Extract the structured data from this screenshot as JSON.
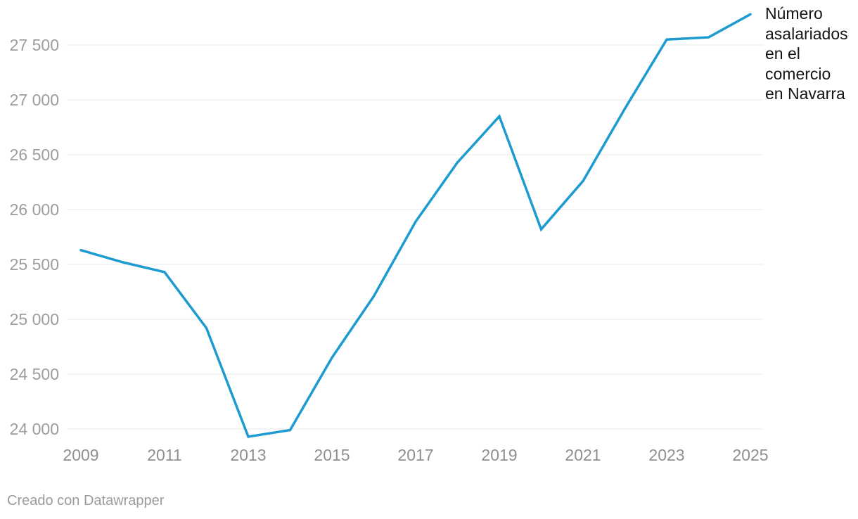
{
  "chart_data": {
    "type": "line",
    "title": "Número asalariados en el comercio en Navarra",
    "annotation_lines": [
      "Número",
      "asalariados",
      "en el",
      "comercio",
      "en Navarra"
    ],
    "x": [
      2009,
      2010,
      2011,
      2012,
      2013,
      2014,
      2015,
      2016,
      2017,
      2018,
      2019,
      2020,
      2021,
      2022,
      2023,
      2024,
      2025
    ],
    "series": [
      {
        "name": "Número asalariados en el comercio en Navarra",
        "values": [
          25630,
          25520,
          25430,
          24920,
          23930,
          23990,
          24650,
          25210,
          25890,
          26430,
          26850,
          25820,
          26260,
          26920,
          27550,
          27570,
          27780
        ]
      }
    ],
    "xlabel": "",
    "ylabel": "",
    "xlim": [
      2009,
      2025
    ],
    "ylim": [
      23900,
      27800
    ],
    "grid": "horizontal-only",
    "legend_position": "end-of-line-label",
    "y_ticks": [
      {
        "value": 24000,
        "label": "24 000"
      },
      {
        "value": 24500,
        "label": "24 500"
      },
      {
        "value": 25000,
        "label": "25 000"
      },
      {
        "value": 25500,
        "label": "25 500"
      },
      {
        "value": 26000,
        "label": "26 000"
      },
      {
        "value": 26500,
        "label": "26 500"
      },
      {
        "value": 27000,
        "label": "27 000"
      },
      {
        "value": 27500,
        "label": "27 500"
      }
    ],
    "x_ticks": [
      {
        "value": 2009,
        "label": "2009"
      },
      {
        "value": 2011,
        "label": "2011"
      },
      {
        "value": 2013,
        "label": "2013"
      },
      {
        "value": 2015,
        "label": "2015"
      },
      {
        "value": 2017,
        "label": "2017"
      },
      {
        "value": 2019,
        "label": "2019"
      },
      {
        "value": 2021,
        "label": "2021"
      },
      {
        "value": 2023,
        "label": "2023"
      },
      {
        "value": 2025,
        "label": "2025"
      }
    ]
  },
  "footer": {
    "credit": "Creado con Datawrapper"
  },
  "colors": {
    "line": "#1c9bd0",
    "grid": "#e9e9e9",
    "y_tick_text": "#9d9d9d",
    "x_tick_text": "#8f8f8f",
    "annotation_text": "#141414",
    "credit_text": "#9b9b9b",
    "background": "#ffffff"
  }
}
